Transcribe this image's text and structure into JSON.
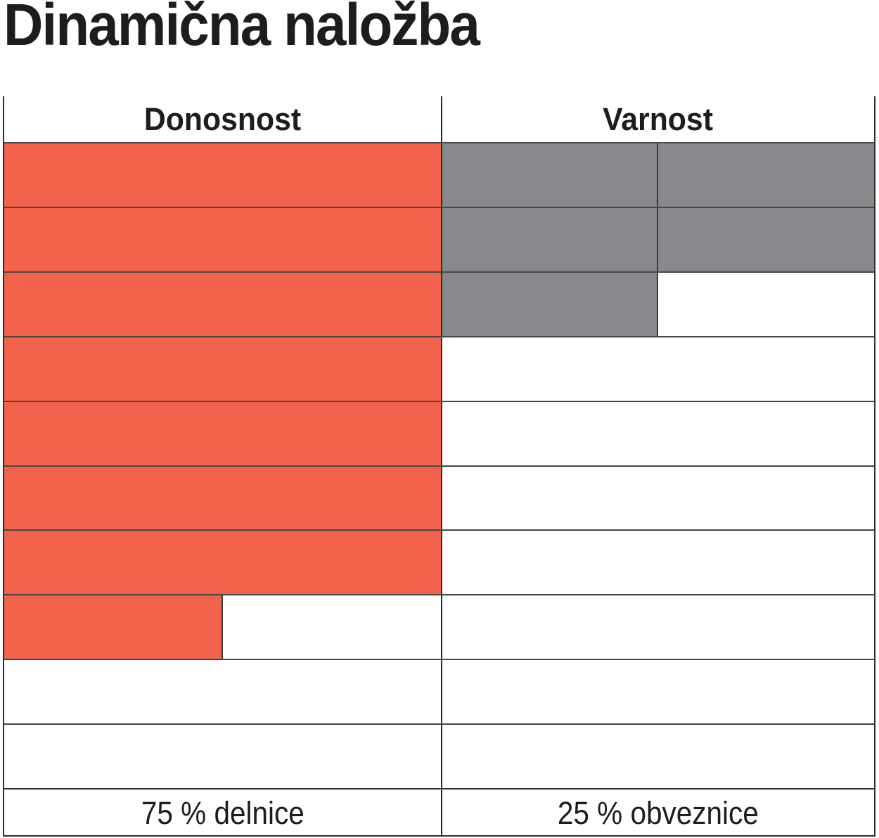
{
  "page": {
    "title": "Dinamična naložba"
  },
  "table": {
    "rows_total": 10,
    "columns": [
      {
        "key": "donosnost",
        "label": "Donosnost",
        "footer": "75 % delnice",
        "fill_color": "#F2624D",
        "cells_filled": 7.5,
        "subcells_per_row": 1
      },
      {
        "key": "varnost",
        "label": "Varnost",
        "footer": "25 % obveznice",
        "fill_color": "#88898C",
        "cells_filled": 2.5,
        "subcells_per_row": 2
      }
    ]
  },
  "colors": {
    "donosnost_fill": "#F2624D",
    "varnost_fill": "#88898C",
    "grid_line": "#474747",
    "frame_line": "#2e2e2e",
    "text": "#1d1d1b",
    "background": "#ffffff"
  },
  "chart_data": {
    "type": "bar",
    "title": "Dinamična naložba",
    "categories": [
      "Donosnost",
      "Varnost"
    ],
    "series": [
      {
        "name": "filled cells (out of 10)",
        "values": [
          7.5,
          2.5
        ]
      }
    ],
    "scale": {
      "max_cells": 10,
      "cell_value_fraction": 0.1
    },
    "representation": "filled-cell rating grid, cells fill from top row downward; partial cell = half width",
    "colors": {
      "Donosnost": "#F2624D",
      "Varnost": "#88898C"
    },
    "annotations": [
      "75 % delnice",
      "25 % obveznice"
    ],
    "legend_position": "none",
    "grid": true
  }
}
